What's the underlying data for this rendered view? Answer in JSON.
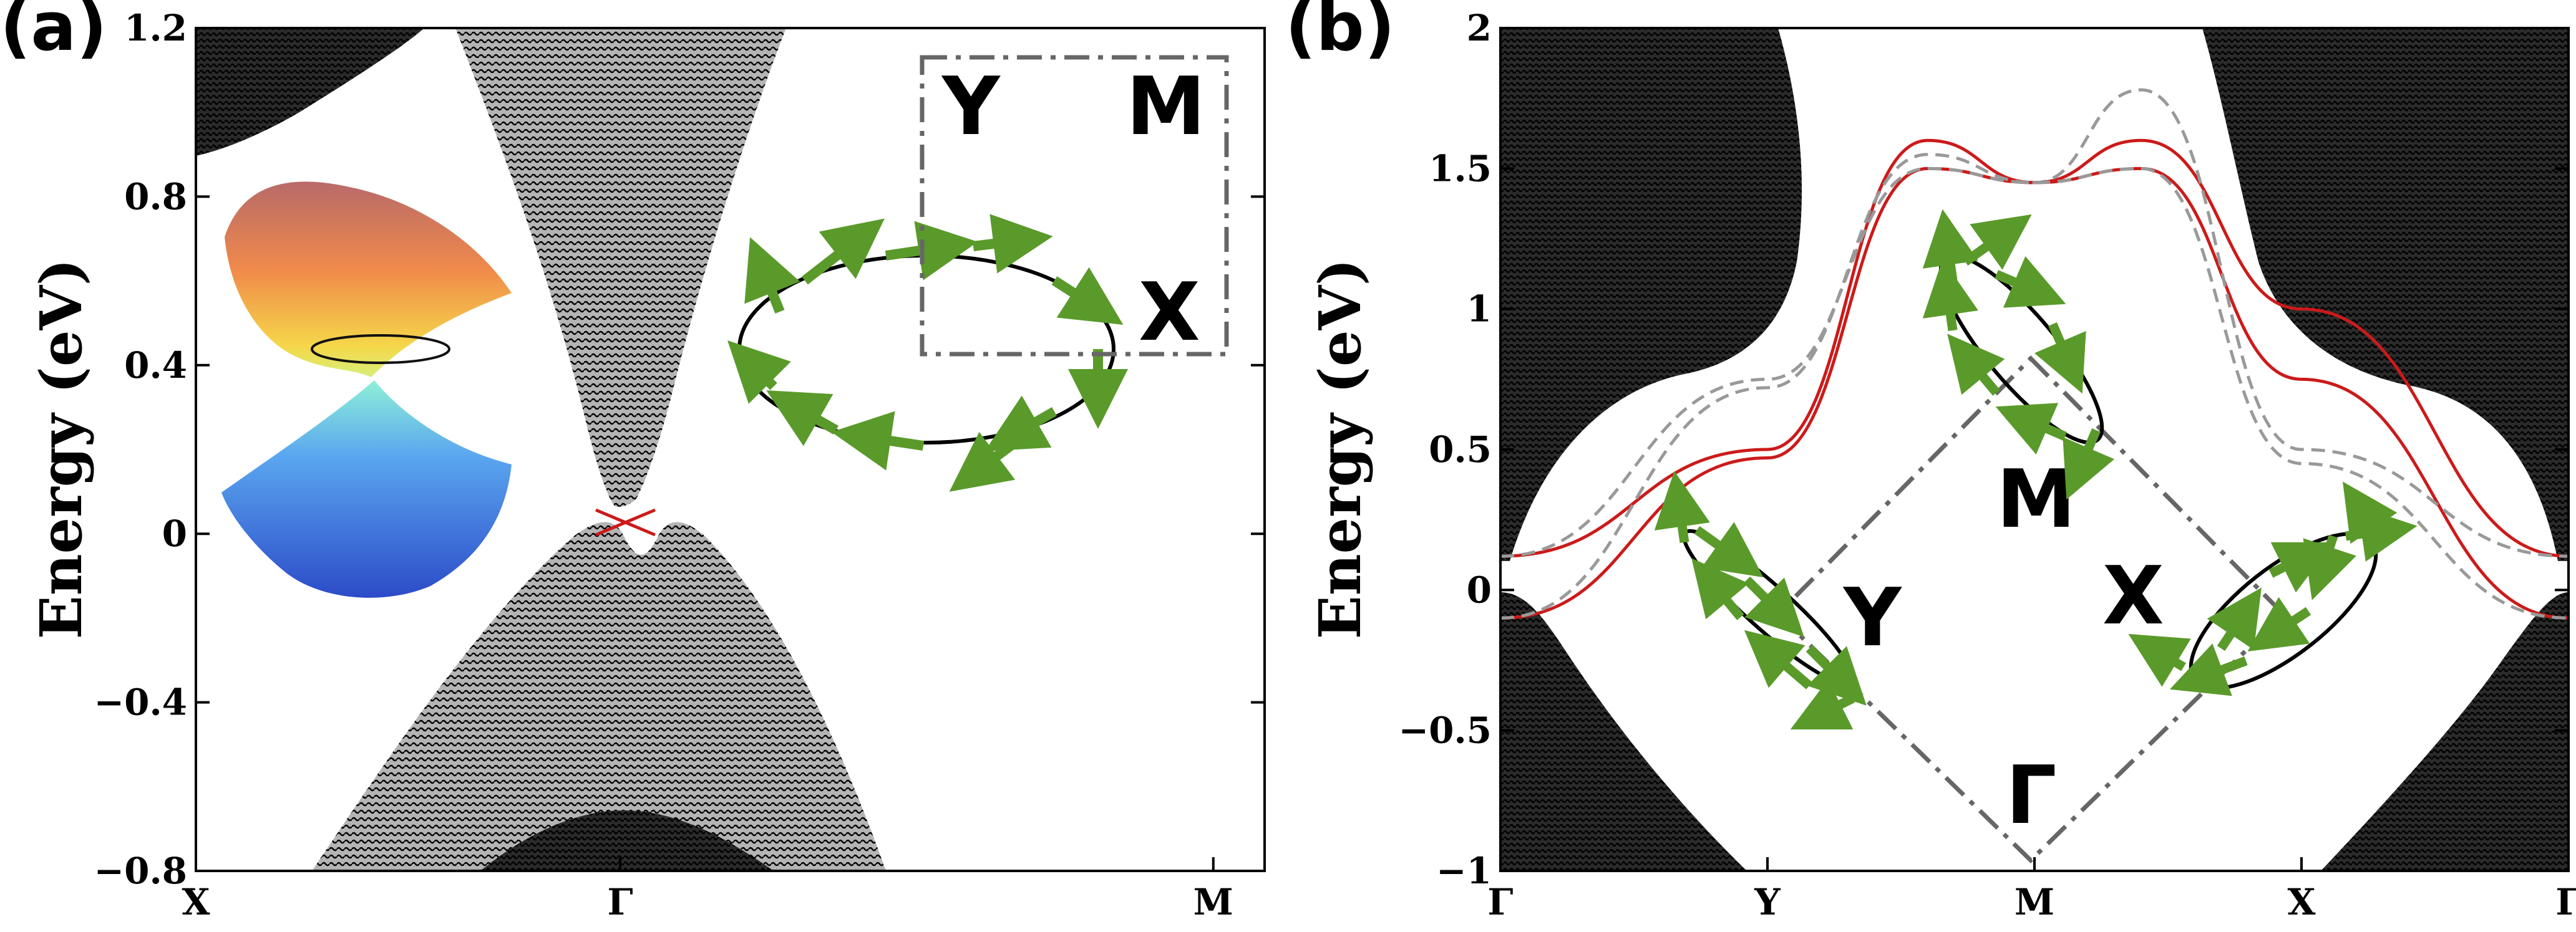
{
  "panels": {
    "a": {
      "label": "(a)",
      "ylabel": "Energy  (eV)",
      "yticks": [
        "1.2",
        "0.8",
        "0.4",
        "0",
        "−0.4",
        "−0.8"
      ],
      "xticks": [
        "X",
        "Γ",
        "M"
      ],
      "bz_labels": {
        "y": "Y",
        "m": "M",
        "x": "X"
      }
    },
    "b": {
      "label": "(b)",
      "ylabel": "Energy  (eV)",
      "yticks": [
        "2",
        "1.5",
        "1",
        "0.5",
        "0",
        "−0.5",
        "−1"
      ],
      "xticks": [
        "Γ",
        "Y",
        "M",
        "X",
        "Γ"
      ],
      "bz_labels": {
        "m": "M",
        "y": "Y",
        "x": "X",
        "g": "Γ"
      }
    }
  },
  "colors": {
    "bulk_bands": "#000000",
    "bulk_fill": "#b4b4b4",
    "surface_state": "#cc1a1a",
    "surface_state_alt": "#999999",
    "spin_arrow": "#5a9a2a",
    "bz_outline": "#666666"
  },
  "chart_data": [
    {
      "type": "line",
      "panel": "(a)",
      "xlabel": "",
      "ylabel": "Energy  (eV)",
      "x_ticks": [
        "X",
        "Γ",
        "M"
      ],
      "ylim": [
        -0.8,
        1.2
      ],
      "series": [
        {
          "values": [
            [
              0.0,
              0.0
            ],
            [
              0.5,
              0.03
            ]
          ]
        },
        {
          "values": [
            [
              0.0,
              0.0
            ],
            [
              0.5,
              -0.03
            ]
          ]
        }
      ],
      "annotations": [
        "Y",
        "M",
        "X"
      ]
    },
    {
      "type": "line",
      "panel": "(b)",
      "xlabel": "",
      "ylabel": "Energy  (eV)",
      "x_ticks": [
        "Γ",
        "Y",
        "M",
        "X",
        "Γ"
      ],
      "ylim": [
        -1,
        2
      ],
      "series": [
        {
          "values": [
            [
              0,
              0.12
            ],
            [
              0.25,
              0.5
            ],
            [
              0.4,
              1.6
            ],
            [
              0.5,
              1.45
            ],
            [
              0.6,
              1.6
            ],
            [
              0.75,
              1.0
            ],
            [
              1,
              0.12
            ]
          ]
        },
        {
          "values": [
            [
              0,
              -0.1
            ],
            [
              0.25,
              0.47
            ],
            [
              0.4,
              1.5
            ],
            [
              0.5,
              1.45
            ],
            [
              0.6,
              1.5
            ],
            [
              0.75,
              0.75
            ],
            [
              1,
              -0.1
            ]
          ]
        },
        {
          "values": [
            [
              0,
              0.12
            ],
            [
              0.25,
              0.75
            ],
            [
              0.4,
              1.5
            ],
            [
              0.5,
              1.45
            ],
            [
              0.6,
              1.78
            ],
            [
              0.75,
              0.5
            ],
            [
              1,
              0.12
            ]
          ]
        },
        {
          "values": [
            [
              0,
              -0.1
            ],
            [
              0.25,
              0.72
            ],
            [
              0.4,
              1.55
            ],
            [
              0.5,
              1.45
            ],
            [
              0.6,
              1.5
            ],
            [
              0.75,
              0.45
            ],
            [
              1,
              -0.1
            ]
          ]
        }
      ],
      "annotations": [
        "M",
        "Y",
        "X",
        "Γ"
      ]
    }
  ]
}
